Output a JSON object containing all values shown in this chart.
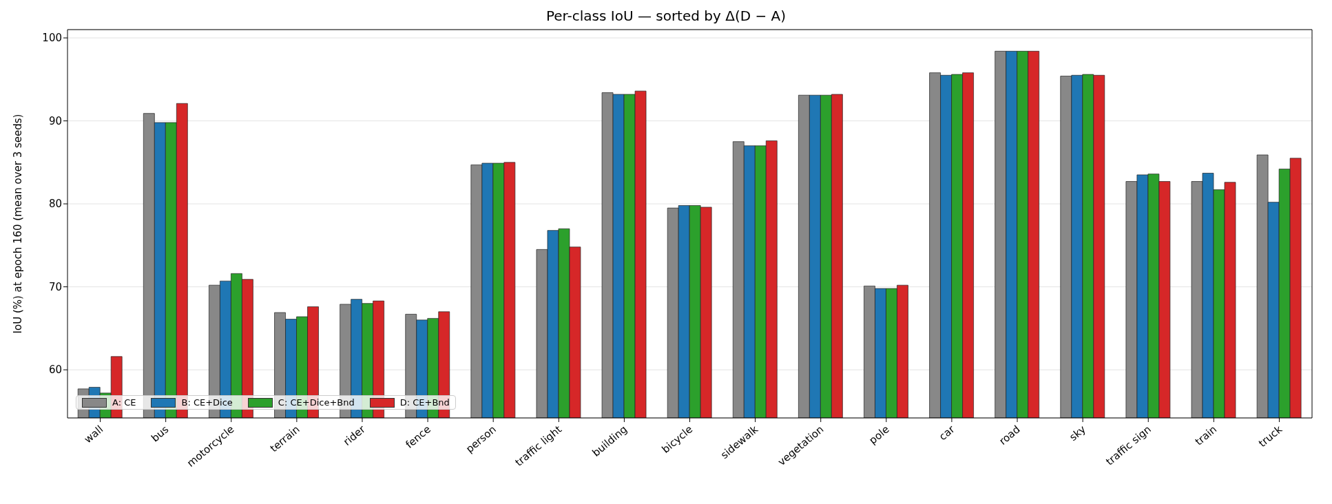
{
  "chart_data": {
    "type": "bar",
    "title": "Per-class IoU — sorted by Δ(D − A)",
    "ylabel": "IoU (%) at epoch 160 (mean over 3 seeds)",
    "categories": [
      "wall",
      "bus",
      "motorcycle",
      "terrain",
      "rider",
      "fence",
      "person",
      "traffic light",
      "building",
      "bicycle",
      "sidewalk",
      "vegetation",
      "pole",
      "car",
      "road",
      "sky",
      "traffic sign",
      "train",
      "truck"
    ],
    "series": [
      {
        "name": "A: CE",
        "color": "#888888",
        "values": [
          57.7,
          90.9,
          70.2,
          66.9,
          67.9,
          66.7,
          84.7,
          74.5,
          93.4,
          79.5,
          87.5,
          93.1,
          70.1,
          95.8,
          98.4,
          95.4,
          82.7,
          82.7,
          85.9
        ]
      },
      {
        "name": "B: CE+Dice",
        "color": "#1f77b4",
        "values": [
          57.9,
          89.8,
          70.7,
          66.1,
          68.5,
          66.0,
          84.9,
          76.8,
          93.2,
          79.8,
          87.0,
          93.1,
          69.8,
          95.5,
          98.4,
          95.5,
          83.5,
          83.7,
          80.2
        ]
      },
      {
        "name": "C: CE+Dice+Bnd",
        "color": "#2ca02c",
        "values": [
          57.2,
          89.8,
          71.6,
          66.4,
          68.0,
          66.2,
          84.9,
          77.0,
          93.2,
          79.8,
          87.0,
          93.1,
          69.8,
          95.6,
          98.4,
          95.6,
          83.6,
          81.7,
          84.2
        ]
      },
      {
        "name": "D: CE+Bnd",
        "color": "#d62728",
        "values": [
          61.6,
          92.1,
          70.9,
          67.6,
          68.3,
          67.0,
          85.0,
          74.8,
          93.6,
          79.6,
          87.6,
          93.2,
          70.2,
          95.8,
          98.4,
          95.5,
          82.7,
          82.6,
          85.5
        ]
      }
    ],
    "ylim": [
      54.2,
      101
    ],
    "yticks": [
      60,
      70,
      80,
      90,
      100
    ],
    "grid": "y",
    "legend": "bottom left"
  }
}
